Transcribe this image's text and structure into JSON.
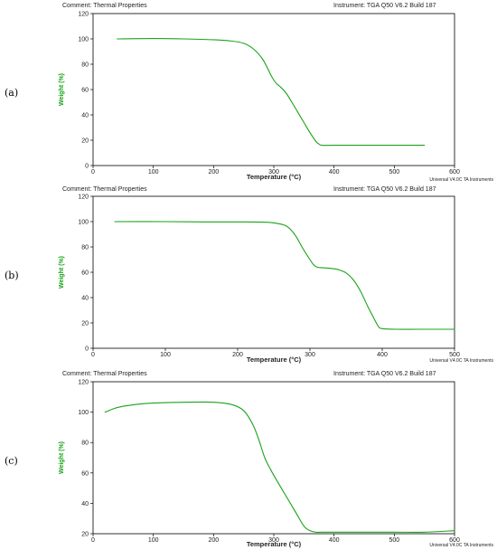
{
  "colors": {
    "trace": "#19a319",
    "frame": "#000000",
    "ylabel": "#19a319"
  },
  "chart_data": [
    {
      "type": "line",
      "panel_label": "(a)",
      "comment": "Comment: Thermal Properties",
      "instrument": "Instrument: TGA Q50 V6.2 Build 187",
      "footer": "Universal V4.0C TA Instruments",
      "xlabel": "Temperature (°C)",
      "ylabel": "Weight (%)",
      "xlim": [
        0,
        600
      ],
      "ylim": [
        0,
        120
      ],
      "xticks": [
        0,
        100,
        200,
        300,
        400,
        500,
        600
      ],
      "yticks": [
        0,
        20,
        40,
        60,
        80,
        100,
        120
      ],
      "grid": false,
      "series": [
        {
          "x": [
            40,
            100,
            150,
            200,
            230,
            250,
            265,
            280,
            290,
            295,
            300,
            305,
            310,
            320,
            330,
            340,
            350,
            360,
            370,
            375,
            380,
            400,
            450,
            500,
            550
          ],
          "y": [
            100,
            100.3,
            100,
            99.3,
            98.3,
            96.5,
            92.5,
            85,
            76.5,
            71.5,
            67.5,
            64.5,
            62.5,
            57.5,
            50,
            42,
            34,
            26,
            19,
            17,
            16,
            16,
            16,
            16,
            16
          ]
        }
      ]
    },
    {
      "type": "line",
      "panel_label": "(b)",
      "comment": "Comment: Thermal Properties",
      "instrument": "Instrument: TGA Q50 V6.2 Build 187",
      "footer": "Universal V4.0C TA Instruments",
      "xlabel": "Temperature (°C)",
      "ylabel": "Weight (%)",
      "xlim": [
        0,
        500
      ],
      "ylim": [
        0,
        120
      ],
      "xticks": [
        0,
        100,
        200,
        300,
        400,
        500
      ],
      "yticks": [
        0,
        20,
        40,
        60,
        80,
        100,
        120
      ],
      "grid": false,
      "series": [
        {
          "x": [
            30,
            100,
            150,
            200,
            240,
            260,
            270,
            280,
            290,
            300,
            305,
            310,
            320,
            330,
            340,
            350,
            360,
            370,
            380,
            390,
            395,
            400,
            420,
            450,
            500
          ],
          "y": [
            100,
            100,
            99.8,
            99.8,
            99.5,
            98,
            95.5,
            89,
            79,
            70,
            66,
            64,
            63.5,
            63,
            62,
            59.5,
            54,
            45,
            33,
            22,
            17,
            15.5,
            15,
            15,
            15
          ]
        }
      ]
    },
    {
      "type": "line",
      "panel_label": "(c)",
      "comment": "Comment: Thermal Properties",
      "instrument": "Instrument: TGA Q50 V6.2 Build 187",
      "footer": "Universal V4.0C TA Instruments",
      "xlabel": "Temperature (°C)",
      "ylabel": "Weight (%)",
      "xlim": [
        0,
        600
      ],
      "ylim": [
        20,
        120
      ],
      "xticks": [
        0,
        100,
        200,
        300,
        400,
        500,
        600
      ],
      "yticks": [
        20,
        40,
        60,
        80,
        100,
        120
      ],
      "grid": false,
      "series": [
        {
          "x": [
            20,
            40,
            70,
            100,
            150,
            200,
            230,
            250,
            265,
            275,
            285,
            295,
            305,
            320,
            335,
            350,
            360,
            370,
            380,
            400,
            450,
            500,
            550,
            600
          ],
          "y": [
            100,
            103,
            105,
            106,
            106.5,
            106.5,
            105,
            101,
            92,
            82,
            70,
            62,
            55,
            45,
            35,
            25,
            22,
            21,
            21,
            21,
            21,
            21,
            21,
            22
          ]
        }
      ]
    }
  ]
}
